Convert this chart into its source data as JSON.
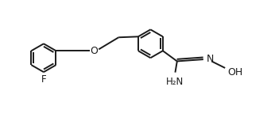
{
  "background_color": "#ffffff",
  "line_color": "#1a1a1a",
  "line_width": 1.4,
  "font_size": 8.5,
  "fig_width": 3.41,
  "fig_height": 1.53,
  "dpi": 100,
  "hex_r": 0.38,
  "xlim": [
    0,
    7.2
  ],
  "ylim": [
    -0.1,
    2.8
  ]
}
